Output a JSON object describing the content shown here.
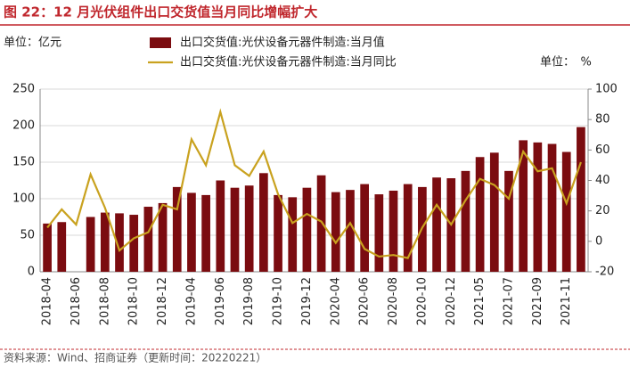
{
  "chart_data": {
    "type": "bar_line",
    "title": "图 22：12 月光伏组件出口交货值当月同比增幅扩大",
    "left_unit": "单位：亿元",
    "right_unit": "单位：　%",
    "source": "资料来源：Wind、招商证券（更新时间：20220221）",
    "categories": [
      "2018-04",
      null,
      "2018-06",
      null,
      "2018-08",
      null,
      "2018-10",
      null,
      "2018-12",
      null,
      "2019-04",
      null,
      "2019-06",
      null,
      "2019-08",
      null,
      "2019-10",
      null,
      "2019-12",
      null,
      "2020-04",
      null,
      "2020-06",
      null,
      "2020-08",
      null,
      "2020-10",
      null,
      "2020-12",
      null,
      "2021-05",
      null,
      "2021-07",
      null,
      "2021-09",
      null,
      "2021-11",
      null
    ],
    "series": [
      {
        "name": "出口交货值:光伏设备元器件制造:当月值",
        "type": "bar",
        "color": "#7b0c10",
        "values": [
          66,
          68,
          null,
          75,
          81,
          80,
          78,
          89,
          94,
          116,
          108,
          105,
          125,
          115,
          118,
          135,
          105,
          102,
          115,
          132,
          109,
          112,
          120,
          106,
          111,
          120,
          116,
          129,
          128,
          138,
          157,
          163,
          138,
          180,
          177,
          175,
          164,
          198
        ]
      },
      {
        "name": "出口交货值:光伏设备元器件制造:当月同比",
        "type": "line",
        "axis": "y2",
        "color": "#c9a21f",
        "values": [
          9,
          21,
          11,
          44,
          22,
          -6,
          2,
          6,
          24,
          21,
          67,
          50,
          85,
          50,
          43,
          59,
          31,
          12,
          18,
          13,
          -1,
          12,
          -5,
          -10,
          -9,
          -11,
          9,
          24,
          11,
          27,
          41,
          37,
          28,
          59,
          46,
          48,
          25,
          52
        ]
      }
    ],
    "ylim": [
      0,
      250
    ],
    "yticks": [
      0,
      50,
      100,
      150,
      200,
      250
    ],
    "y2lim": [
      -20,
      100
    ],
    "y2ticks": [
      -20,
      0,
      20,
      40,
      60,
      80,
      100
    ],
    "grid": true
  }
}
